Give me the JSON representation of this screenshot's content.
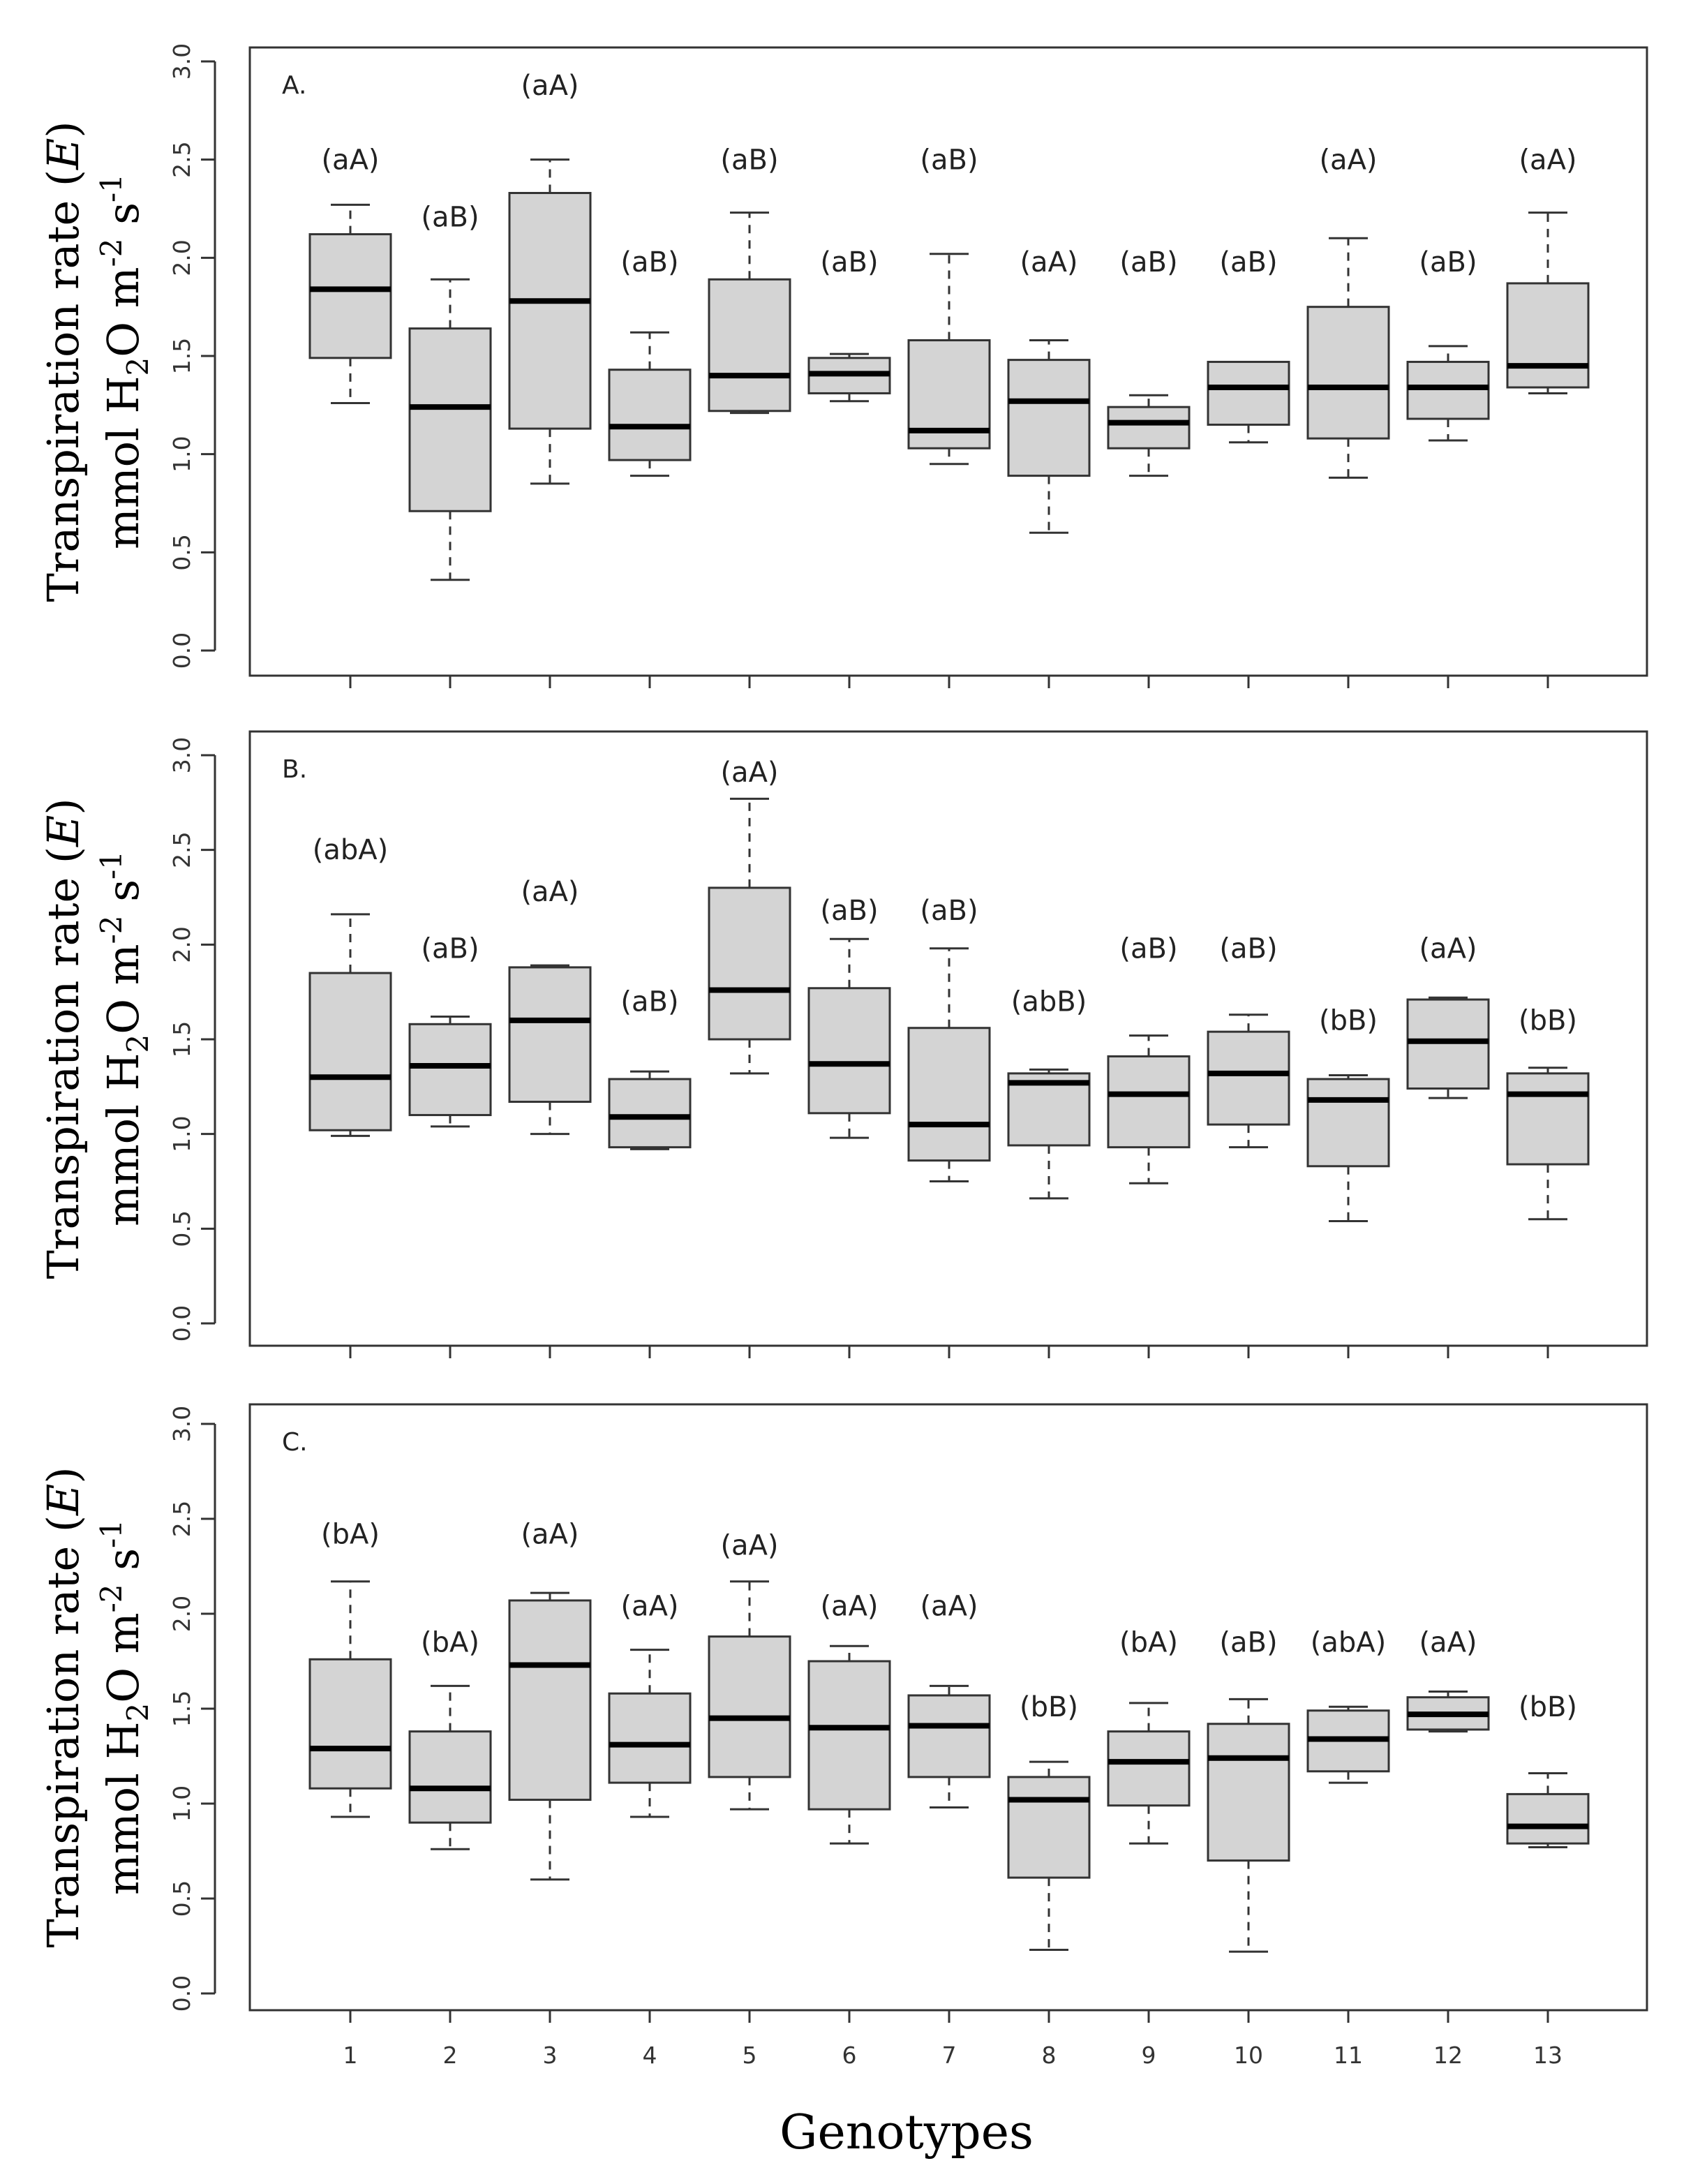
{
  "chart_data": [
    {
      "type": "box",
      "panel_label": "A.",
      "ylabel_line1": "Transpiration rate (",
      "ylabel_E": "E",
      "ylabel_line1_end": ")",
      "ylabel_line2": "mmol H",
      "ylabel_sub2": "2",
      "ylabel_line2_mid": "O m",
      "ylabel_sup_m": "-2",
      "ylabel_line2_s": " s",
      "ylabel_sup_s": "-1",
      "ylim": [
        0,
        3
      ],
      "yticks": [
        "0.0",
        "0.5",
        "1.0",
        "1.5",
        "2.0",
        "2.5",
        "3.0"
      ],
      "boxes": [
        {
          "genotype": "1",
          "min": 1.26,
          "q1": 1.49,
          "median": 1.84,
          "q3": 2.12,
          "max": 2.27,
          "label": "(aA)",
          "label_y": 2.45
        },
        {
          "genotype": "2",
          "min": 0.36,
          "q1": 0.71,
          "median": 1.24,
          "q3": 1.64,
          "max": 1.89,
          "label": "(aB)",
          "label_y": 2.16
        },
        {
          "genotype": "3",
          "min": 0.85,
          "q1": 1.13,
          "median": 1.78,
          "q3": 2.33,
          "max": 2.5,
          "label": "(aA)",
          "label_y": 2.83
        },
        {
          "genotype": "4",
          "min": 0.89,
          "q1": 0.97,
          "median": 1.14,
          "q3": 1.43,
          "max": 1.62,
          "label": "(aB)",
          "label_y": 1.93
        },
        {
          "genotype": "5",
          "min": 1.21,
          "q1": 1.22,
          "median": 1.4,
          "q3": 1.89,
          "max": 2.23,
          "label": "(aB)",
          "label_y": 2.45
        },
        {
          "genotype": "6",
          "min": 1.27,
          "q1": 1.31,
          "median": 1.41,
          "q3": 1.49,
          "max": 1.51,
          "label": "(aB)",
          "label_y": 1.93
        },
        {
          "genotype": "7",
          "min": 0.95,
          "q1": 1.03,
          "median": 1.12,
          "q3": 1.58,
          "max": 2.02,
          "label": "(aB)",
          "label_y": 2.45
        },
        {
          "genotype": "8",
          "min": 0.6,
          "q1": 0.89,
          "median": 1.27,
          "q3": 1.48,
          "max": 1.58,
          "label": "(aA)",
          "label_y": 1.93
        },
        {
          "genotype": "9",
          "min": 0.89,
          "q1": 1.03,
          "median": 1.16,
          "q3": 1.24,
          "max": 1.3,
          "label": "(aB)",
          "label_y": 1.93
        },
        {
          "genotype": "10",
          "min": 1.06,
          "q1": 1.15,
          "median": 1.34,
          "q3": 1.47,
          "max": 1.47,
          "label": "(aB)",
          "label_y": 1.93
        },
        {
          "genotype": "11",
          "min": 0.88,
          "q1": 1.08,
          "median": 1.34,
          "q3": 1.75,
          "max": 2.1,
          "label": "(aA)",
          "label_y": 2.45
        },
        {
          "genotype": "12",
          "min": 1.07,
          "q1": 1.18,
          "median": 1.34,
          "q3": 1.47,
          "max": 1.55,
          "label": "(aB)",
          "label_y": 1.93
        },
        {
          "genotype": "13",
          "min": 1.31,
          "q1": 1.34,
          "median": 1.45,
          "q3": 1.87,
          "max": 2.23,
          "label": "(aA)",
          "label_y": 2.45
        }
      ]
    },
    {
      "type": "box",
      "panel_label": "B.",
      "ylabel_line1": "Transpiration rate (",
      "ylabel_E": "E",
      "ylabel_line1_end": ")",
      "ylabel_line2": "mmol H",
      "ylabel_sub2": "2",
      "ylabel_line2_mid": "O m",
      "ylabel_sup_m": "-2",
      "ylabel_line2_s": " s",
      "ylabel_sup_s": "-1",
      "ylim": [
        0,
        3
      ],
      "yticks": [
        "0.0",
        "0.5",
        "1.0",
        "1.5",
        "2.0",
        "2.5",
        "3.0"
      ],
      "boxes": [
        {
          "genotype": "1",
          "min": 0.99,
          "q1": 1.02,
          "median": 1.3,
          "q3": 1.85,
          "max": 2.16,
          "label": "(abA)",
          "label_y": 2.45
        },
        {
          "genotype": "2",
          "min": 1.04,
          "q1": 1.1,
          "median": 1.36,
          "q3": 1.58,
          "max": 1.62,
          "label": "(aB)",
          "label_y": 1.93
        },
        {
          "genotype": "3",
          "min": 1.0,
          "q1": 1.17,
          "median": 1.6,
          "q3": 1.88,
          "max": 1.89,
          "label": "(aA)",
          "label_y": 2.23
        },
        {
          "genotype": "4",
          "min": 0.92,
          "q1": 0.93,
          "median": 1.09,
          "q3": 1.29,
          "max": 1.33,
          "label": "(aB)",
          "label_y": 1.65
        },
        {
          "genotype": "5",
          "min": 1.32,
          "q1": 1.5,
          "median": 1.76,
          "q3": 2.3,
          "max": 2.77,
          "label": "(aA)",
          "label_y": 2.86
        },
        {
          "genotype": "6",
          "min": 0.98,
          "q1": 1.11,
          "median": 1.37,
          "q3": 1.77,
          "max": 2.03,
          "label": "(aB)",
          "label_y": 2.13
        },
        {
          "genotype": "7",
          "min": 0.75,
          "q1": 0.86,
          "median": 1.05,
          "q3": 1.56,
          "max": 1.98,
          "label": "(aB)",
          "label_y": 2.13
        },
        {
          "genotype": "8",
          "min": 0.66,
          "q1": 0.94,
          "median": 1.27,
          "q3": 1.32,
          "max": 1.34,
          "label": "(abB)",
          "label_y": 1.65
        },
        {
          "genotype": "9",
          "min": 0.74,
          "q1": 0.93,
          "median": 1.21,
          "q3": 1.41,
          "max": 1.52,
          "label": "(aB)",
          "label_y": 1.93
        },
        {
          "genotype": "10",
          "min": 0.93,
          "q1": 1.05,
          "median": 1.32,
          "q3": 1.54,
          "max": 1.63,
          "label": "(aB)",
          "label_y": 1.93
        },
        {
          "genotype": "11",
          "min": 0.54,
          "q1": 0.83,
          "median": 1.18,
          "q3": 1.29,
          "max": 1.31,
          "label": "(bB)",
          "label_y": 1.55
        },
        {
          "genotype": "12",
          "min": 1.19,
          "q1": 1.24,
          "median": 1.49,
          "q3": 1.71,
          "max": 1.72,
          "label": "(aA)",
          "label_y": 1.93
        },
        {
          "genotype": "13",
          "min": 0.55,
          "q1": 0.84,
          "median": 1.21,
          "q3": 1.32,
          "max": 1.35,
          "label": "(bB)",
          "label_y": 1.55
        }
      ]
    },
    {
      "type": "box",
      "panel_label": "C.",
      "ylabel_line1": "Transpiration rate (",
      "ylabel_E": "E",
      "ylabel_line1_end": ")",
      "ylabel_line2": "mmol H",
      "ylabel_sub2": "2",
      "ylabel_line2_mid": "O m",
      "ylabel_sup_m": "-2",
      "ylabel_line2_s": " s",
      "ylabel_sup_s": "-1",
      "ylim": [
        0,
        3
      ],
      "yticks": [
        "0.0",
        "0.5",
        "1.0",
        "1.5",
        "2.0",
        "2.5",
        "3.0"
      ],
      "xticks": [
        "1",
        "2",
        "3",
        "4",
        "5",
        "6",
        "7",
        "8",
        "9",
        "10",
        "11",
        "12",
        "13"
      ],
      "xlabel": "Genotypes",
      "boxes": [
        {
          "genotype": "1",
          "min": 0.93,
          "q1": 1.08,
          "median": 1.29,
          "q3": 1.76,
          "max": 2.17,
          "label": "(bA)",
          "label_y": 2.37
        },
        {
          "genotype": "2",
          "min": 0.76,
          "q1": 0.9,
          "median": 1.08,
          "q3": 1.38,
          "max": 1.62,
          "label": "(bA)",
          "label_y": 1.8
        },
        {
          "genotype": "3",
          "min": 0.6,
          "q1": 1.02,
          "median": 1.73,
          "q3": 2.07,
          "max": 2.11,
          "label": "(aA)",
          "label_y": 2.37
        },
        {
          "genotype": "4",
          "min": 0.93,
          "q1": 1.11,
          "median": 1.31,
          "q3": 1.58,
          "max": 1.81,
          "label": "(aA)",
          "label_y": 1.99
        },
        {
          "genotype": "5",
          "min": 0.97,
          "q1": 1.14,
          "median": 1.45,
          "q3": 1.88,
          "max": 2.17,
          "label": "(aA)",
          "label_y": 2.31
        },
        {
          "genotype": "6",
          "min": 0.79,
          "q1": 0.97,
          "median": 1.4,
          "q3": 1.75,
          "max": 1.83,
          "label": "(aA)",
          "label_y": 1.99
        },
        {
          "genotype": "7",
          "min": 0.98,
          "q1": 1.14,
          "median": 1.41,
          "q3": 1.57,
          "max": 1.62,
          "label": "(aA)",
          "label_y": 1.99
        },
        {
          "genotype": "8",
          "min": 0.23,
          "q1": 0.61,
          "median": 1.02,
          "q3": 1.14,
          "max": 1.22,
          "label": "(bB)",
          "label_y": 1.46
        },
        {
          "genotype": "9",
          "min": 0.79,
          "q1": 0.99,
          "median": 1.22,
          "q3": 1.38,
          "max": 1.53,
          "label": "(bA)",
          "label_y": 1.8
        },
        {
          "genotype": "10",
          "min": 0.22,
          "q1": 0.7,
          "median": 1.24,
          "q3": 1.42,
          "max": 1.55,
          "label": "(aB)",
          "label_y": 1.8
        },
        {
          "genotype": "11",
          "min": 1.11,
          "q1": 1.17,
          "median": 1.34,
          "q3": 1.49,
          "max": 1.51,
          "label": "(abA)",
          "label_y": 1.8
        },
        {
          "genotype": "12",
          "min": 1.38,
          "q1": 1.39,
          "median": 1.47,
          "q3": 1.56,
          "max": 1.59,
          "label": "(aA)",
          "label_y": 1.8
        },
        {
          "genotype": "13",
          "min": 0.77,
          "q1": 0.79,
          "median": 0.88,
          "q3": 1.05,
          "max": 1.16,
          "label": "(bB)",
          "label_y": 1.46
        }
      ]
    }
  ],
  "colors": {
    "box_fill": "#d4d4d4",
    "box_stroke": "#333333",
    "median": "#000000",
    "axis": "#333333",
    "background": "#ffffff"
  }
}
